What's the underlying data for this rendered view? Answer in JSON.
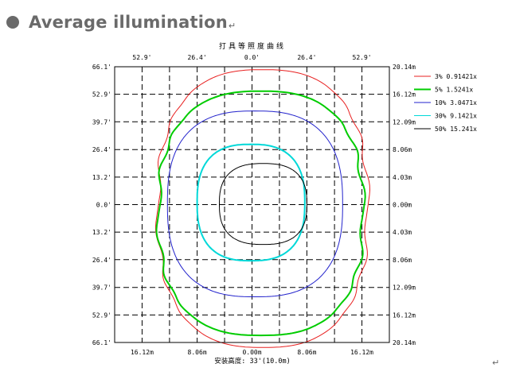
{
  "page": {
    "heading": "Average illumination",
    "return_mark": "↵",
    "bottom_mark": "↵"
  },
  "chart_data": {
    "type": "isolux-contour",
    "title": "打具等照度曲线",
    "bottom_label": "安装高度: 33'(10.0m)",
    "x_range": [
      -66.1,
      66.1
    ],
    "y_range": [
      -66.1,
      66.1
    ],
    "top_axis_ticks": [
      {
        "value": -52.9,
        "label": "52.9'"
      },
      {
        "value": -26.4,
        "label": "26.4'"
      },
      {
        "value": 0,
        "label": "0.0'"
      },
      {
        "value": 26.4,
        "label": "26.4'"
      },
      {
        "value": 52.9,
        "label": "52.9'"
      }
    ],
    "bottom_axis_ticks": [
      {
        "value": -52.9,
        "label": "16.12m"
      },
      {
        "value": -26.4,
        "label": "8.06m"
      },
      {
        "value": 0,
        "label": "0.00m"
      },
      {
        "value": 26.4,
        "label": "8.06m"
      },
      {
        "value": 52.9,
        "label": "16.12m"
      }
    ],
    "left_axis_ticks": [
      {
        "value": 66.1,
        "label": "66.1'"
      },
      {
        "value": 52.9,
        "label": "52.9'"
      },
      {
        "value": 39.7,
        "label": "39.7'"
      },
      {
        "value": 26.4,
        "label": "26.4'"
      },
      {
        "value": 13.2,
        "label": "13.2'"
      },
      {
        "value": 0,
        "label": "0.0'"
      },
      {
        "value": -13.2,
        "label": "13.2'"
      },
      {
        "value": -26.4,
        "label": "26.4'"
      },
      {
        "value": -39.7,
        "label": "39.7'"
      },
      {
        "value": -52.9,
        "label": "52.9'"
      },
      {
        "value": -66.1,
        "label": "66.1'"
      }
    ],
    "right_axis_ticks": [
      {
        "value": 66.1,
        "label": "20.14m"
      },
      {
        "value": 52.9,
        "label": "16.12m"
      },
      {
        "value": 39.7,
        "label": "12.09m"
      },
      {
        "value": 26.4,
        "label": "8.06m"
      },
      {
        "value": 13.2,
        "label": "4.03m"
      },
      {
        "value": 0,
        "label": "0.00m"
      },
      {
        "value": -13.2,
        "label": "4.03m"
      },
      {
        "value": -26.4,
        "label": "8.06m"
      },
      {
        "value": -39.7,
        "label": "12.09m"
      },
      {
        "value": -52.9,
        "label": "16.12m"
      },
      {
        "value": -66.1,
        "label": "20.14m"
      }
    ],
    "grid_x": [
      -52.9,
      -39.7,
      -26.4,
      -13.2,
      0,
      13.2,
      26.4,
      39.7,
      52.9
    ],
    "grid_y": [
      52.9,
      39.7,
      26.4,
      13.2,
      0,
      -13.2,
      -26.4,
      -39.7,
      -52.9
    ],
    "grid": "dashed",
    "legend_position": "right",
    "series": [
      {
        "name": "3%  0.91421x",
        "color": "#e82020",
        "wavy": true,
        "x": [
          -45.3,
          55.6
        ],
        "y": [
          -68.5,
          64.7
        ]
      },
      {
        "name": "5%  1.5241x",
        "color": "#00cc00",
        "wavy": true,
        "x": [
          -44.9,
          53.4
        ],
        "y": [
          -62.7,
          54.4
        ]
      },
      {
        "name": "10% 3.0471x",
        "color": "#2222cc",
        "wavy": false,
        "x": [
          -40.7,
          43.6
        ],
        "y": [
          -44.2,
          44.9
        ]
      },
      {
        "name": "30% 9.1421x",
        "color": "#00d8d8",
        "wavy": false,
        "x": [
          -26.4,
          25.4
        ],
        "y": [
          -26.9,
          28.9
        ]
      },
      {
        "name": "50% 15.241x",
        "color": "#000000",
        "wavy": false,
        "x": [
          -15.7,
          26.4
        ],
        "y": [
          -19.1,
          19.7
        ]
      }
    ]
  }
}
